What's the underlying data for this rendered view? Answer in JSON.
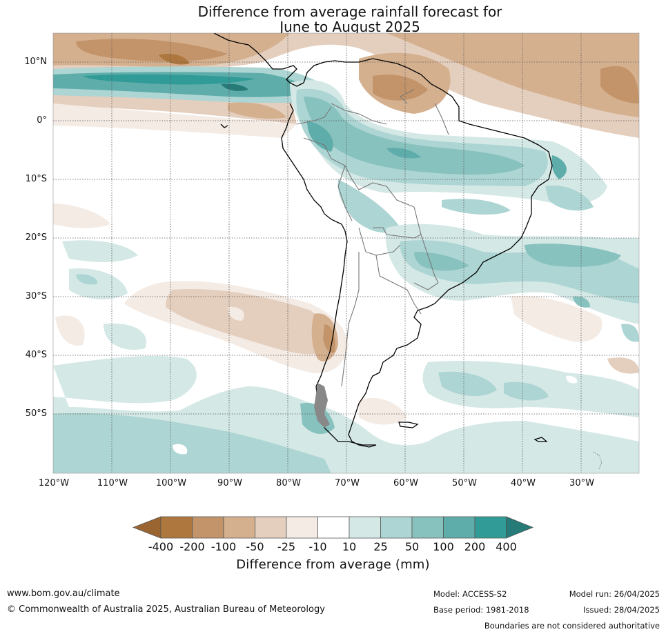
{
  "title": {
    "line1": "Difference from average rainfall forecast for",
    "line2": "June to August 2025"
  },
  "map": {
    "lat_labels": [
      "10°N",
      "0°",
      "10°S",
      "20°S",
      "30°S",
      "40°S",
      "50°S"
    ],
    "lon_labels": [
      "120°W",
      "110°W",
      "100°W",
      "90°W",
      "80°W",
      "70°W",
      "60°W",
      "50°W",
      "40°W",
      "30°W"
    ]
  },
  "colorbar": {
    "title": "Difference from average (mm)",
    "labels": [
      "-400",
      "-200",
      "-100",
      "-50",
      "-25",
      "-10",
      "10",
      "25",
      "50",
      "100",
      "200",
      "400"
    ],
    "colors": [
      "#9b6532",
      "#ad773e",
      "#c3946a",
      "#d4b08f",
      "#e4cebd",
      "#f4ebe5",
      "#ffffff",
      "#d4e8e6",
      "#add5d3",
      "#88c2bf",
      "#5eadaa",
      "#319b97",
      "#267a78"
    ]
  },
  "footer": {
    "website": "www.bom.gov.au/climate",
    "copyright": "© Commonwealth of Australia 2025, Australian Bureau of Meteorology",
    "model": "Model: ACCESS-S2",
    "base_period": "Base period: 1981-2018",
    "model_run": "Model run: 26/04/2025",
    "issued": "Issued: 28/04/2025",
    "disclaimer": "Boundaries are not considered authoritative"
  }
}
